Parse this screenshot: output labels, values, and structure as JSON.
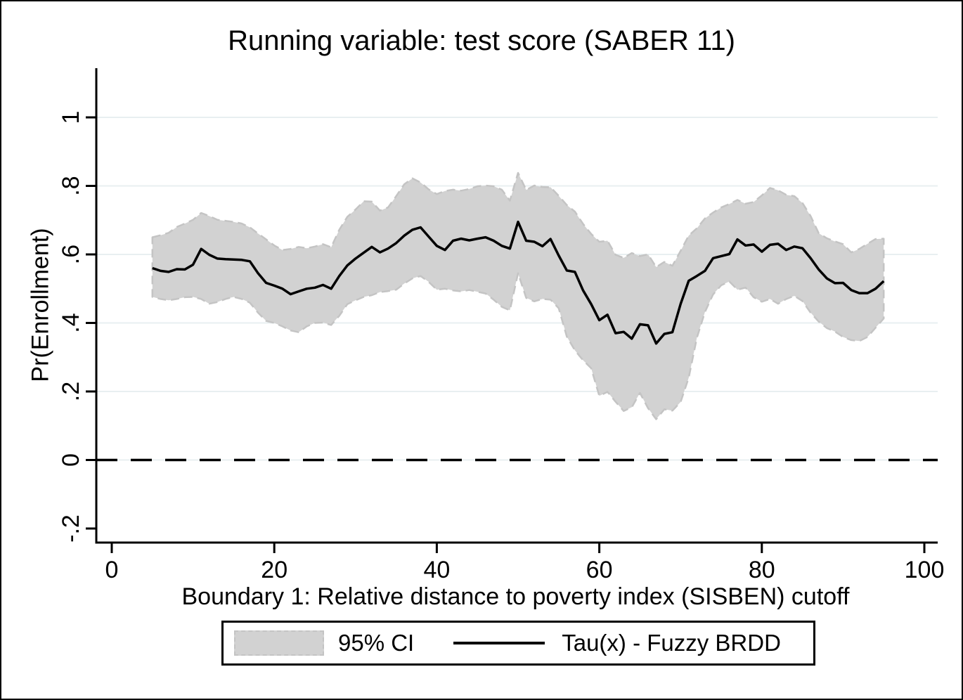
{
  "title": "Running variable: test score (SABER 11)",
  "x_axis": {
    "title": "Boundary 1: Relative distance to poverty index (SISBEN) cutoff"
  },
  "y_axis": {
    "title": "Pr(Enrollment)"
  },
  "legend": {
    "ci_label": "95% CI",
    "tau_label": "Tau(x) - Fuzzy BRDD"
  },
  "colors": {
    "ci_fill": "#d2d2d2",
    "ci_border": "#c4c4c4",
    "tau_line": "#000000",
    "reference_line": "#000000",
    "gridline": "#e8eff1",
    "axis": "#000000",
    "background": "#ffffff"
  },
  "chart_data": {
    "type": "line",
    "title": "Running variable: test score (SABER 11)",
    "xlabel": "Boundary 1: Relative distance to poverty index (SISBEN) cutoff",
    "ylabel": "Pr(Enrollment)",
    "xlim": [
      0,
      100
    ],
    "ylim": [
      -0.25,
      1.14
    ],
    "x_ticks": [
      0,
      20,
      40,
      60,
      80,
      100
    ],
    "x_tick_labels": [
      "0",
      "20",
      "40",
      "60",
      "80",
      "100"
    ],
    "y_ticks": [
      -0.2,
      0,
      0.2,
      0.4,
      0.6,
      0.8,
      1
    ],
    "y_tick_labels": [
      "-.2",
      "0",
      ".2",
      ".4",
      ".6",
      ".8",
      "1"
    ],
    "grid_y": [
      0,
      0.2,
      0.4,
      0.6,
      0.8,
      1
    ],
    "reference_line_y": 0,
    "legend_position": "bottom",
    "grid": true,
    "x": [
      5,
      6,
      7,
      8,
      9,
      10,
      11,
      12,
      13,
      14,
      15,
      16,
      17,
      18,
      19,
      20,
      21,
      22,
      23,
      24,
      25,
      26,
      27,
      28,
      29,
      30,
      31,
      32,
      33,
      34,
      35,
      36,
      37,
      38,
      39,
      40,
      41,
      42,
      43,
      44,
      45,
      46,
      47,
      48,
      49,
      50,
      51,
      52,
      53,
      54,
      55,
      56,
      57,
      58,
      59,
      60,
      61,
      62,
      63,
      64,
      65,
      66,
      67,
      68,
      69,
      70,
      71,
      72,
      73,
      74,
      75,
      76,
      77,
      78,
      79,
      80,
      81,
      82,
      83,
      84,
      85,
      86,
      87,
      88,
      89,
      90,
      91,
      92,
      93,
      94,
      95
    ],
    "series": [
      {
        "name": "Tau(x) - Fuzzy BRDD",
        "type": "line",
        "values": [
          0.56,
          0.552,
          0.549,
          0.557,
          0.556,
          0.57,
          0.616,
          0.599,
          0.588,
          0.586,
          0.585,
          0.584,
          0.58,
          0.545,
          0.517,
          0.509,
          0.5,
          0.484,
          0.492,
          0.5,
          0.503,
          0.511,
          0.5,
          0.537,
          0.568,
          0.588,
          0.605,
          0.622,
          0.606,
          0.617,
          0.633,
          0.655,
          0.672,
          0.679,
          0.652,
          0.625,
          0.613,
          0.64,
          0.646,
          0.641,
          0.646,
          0.65,
          0.64,
          0.625,
          0.617,
          0.695,
          0.64,
          0.637,
          0.624,
          0.645,
          0.597,
          0.553,
          0.549,
          0.495,
          0.455,
          0.408,
          0.424,
          0.37,
          0.374,
          0.354,
          0.396,
          0.393,
          0.34,
          0.368,
          0.373,
          0.455,
          0.523,
          0.537,
          0.552,
          0.589,
          0.595,
          0.601,
          0.644,
          0.626,
          0.629,
          0.608,
          0.628,
          0.631,
          0.613,
          0.623,
          0.618,
          0.589,
          0.556,
          0.53,
          0.516,
          0.517,
          0.496,
          0.487,
          0.487,
          0.5,
          0.522
        ]
      },
      {
        "name": "95% CI",
        "type": "band",
        "upper": [
          0.65,
          0.656,
          0.663,
          0.68,
          0.69,
          0.701,
          0.721,
          0.712,
          0.701,
          0.698,
          0.695,
          0.69,
          0.679,
          0.661,
          0.644,
          0.626,
          0.613,
          0.616,
          0.622,
          0.618,
          0.623,
          0.63,
          0.621,
          0.672,
          0.71,
          0.731,
          0.755,
          0.754,
          0.728,
          0.737,
          0.77,
          0.805,
          0.822,
          0.81,
          0.79,
          0.776,
          0.785,
          0.789,
          0.786,
          0.791,
          0.799,
          0.801,
          0.799,
          0.789,
          0.757,
          0.838,
          0.788,
          0.801,
          0.797,
          0.796,
          0.771,
          0.744,
          0.725,
          0.689,
          0.66,
          0.637,
          0.64,
          0.599,
          0.59,
          0.604,
          0.595,
          0.6,
          0.563,
          0.578,
          0.567,
          0.61,
          0.655,
          0.676,
          0.705,
          0.722,
          0.737,
          0.747,
          0.759,
          0.748,
          0.753,
          0.772,
          0.794,
          0.787,
          0.774,
          0.77,
          0.75,
          0.712,
          0.662,
          0.647,
          0.638,
          0.63,
          0.606,
          0.616,
          0.631,
          0.645,
          0.646
        ],
        "lower": [
          0.476,
          0.47,
          0.466,
          0.47,
          0.475,
          0.476,
          0.47,
          0.456,
          0.461,
          0.47,
          0.476,
          0.47,
          0.459,
          0.43,
          0.406,
          0.4,
          0.39,
          0.378,
          0.373,
          0.39,
          0.4,
          0.401,
          0.394,
          0.421,
          0.455,
          0.466,
          0.476,
          0.481,
          0.49,
          0.493,
          0.497,
          0.515,
          0.53,
          0.537,
          0.52,
          0.497,
          0.5,
          0.495,
          0.492,
          0.496,
          0.491,
          0.486,
          0.468,
          0.447,
          0.437,
          0.545,
          0.473,
          0.463,
          0.47,
          0.468,
          0.443,
          0.36,
          0.32,
          0.291,
          0.268,
          0.187,
          0.199,
          0.17,
          0.143,
          0.154,
          0.196,
          0.151,
          0.119,
          0.148,
          0.144,
          0.169,
          0.24,
          0.356,
          0.432,
          0.483,
          0.51,
          0.521,
          0.497,
          0.503,
          0.475,
          0.462,
          0.47,
          0.456,
          0.47,
          0.479,
          0.464,
          0.43,
          0.404,
          0.385,
          0.375,
          0.359,
          0.35,
          0.347,
          0.359,
          0.386,
          0.413
        ]
      }
    ]
  }
}
